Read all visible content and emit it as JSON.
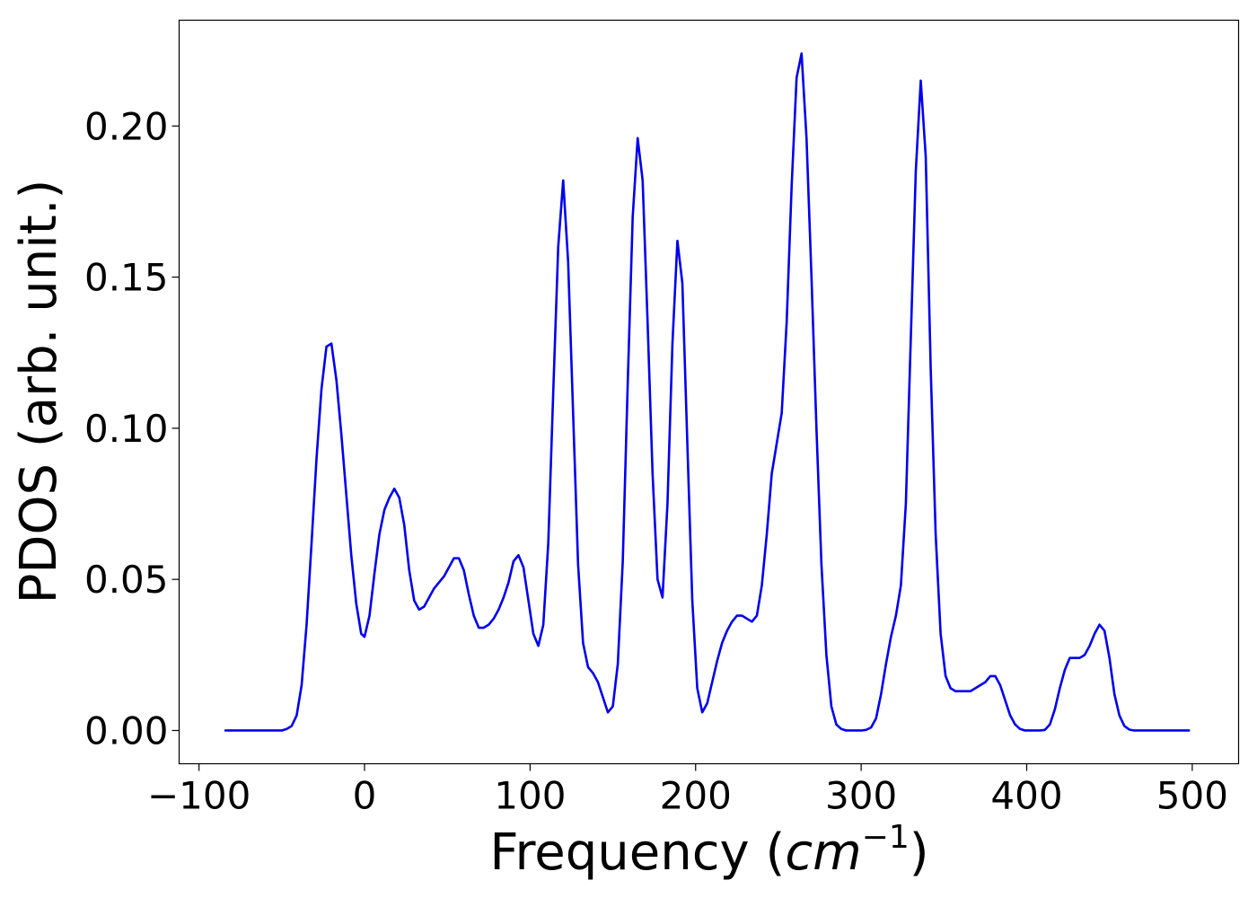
{
  "chart_data": {
    "type": "line",
    "title": "",
    "xlabel_text": "Frequency (",
    "xlabel_math": "cm",
    "xlabel_sup": "−1",
    "xlabel_close": ")",
    "ylabel": "PDOS (arb. unit.)",
    "xlim": [
      -112,
      528
    ],
    "ylim": [
      -0.011,
      0.235
    ],
    "xticks": [
      -100,
      0,
      100,
      200,
      300,
      400,
      500
    ],
    "xtick_labels": [
      "−100",
      "0",
      "100",
      "200",
      "300",
      "400",
      "500"
    ],
    "yticks": [
      0.0,
      0.05,
      0.1,
      0.15,
      0.2
    ],
    "ytick_labels": [
      "0.00",
      "0.05",
      "0.10",
      "0.15",
      "0.20"
    ],
    "grid": false,
    "legend": null,
    "line_color": "#0000ee",
    "series": [
      {
        "x": [
          -84,
          -50,
          -47,
          -44,
          -41,
          -38,
          -35,
          -32,
          -29,
          -26,
          -23,
          -20,
          -17,
          -14,
          -11,
          -8,
          -5,
          -2,
          0,
          3,
          6,
          9,
          12,
          15,
          18,
          21,
          24,
          27,
          30,
          33,
          36,
          39,
          42,
          45,
          48,
          51,
          54,
          57,
          60,
          63,
          66,
          69,
          72,
          75,
          78,
          81,
          84,
          87,
          90,
          93,
          96,
          99,
          102,
          105,
          108,
          111,
          114,
          117,
          120,
          123,
          126,
          129,
          132,
          135,
          138,
          141,
          144,
          147,
          150,
          153,
          156,
          159,
          162,
          165,
          168,
          171,
          174,
          177,
          180,
          183,
          186,
          189,
          192,
          195,
          198,
          201,
          204,
          207,
          210,
          213,
          216,
          219,
          222,
          225,
          228,
          231,
          234,
          237,
          240,
          243,
          246,
          249,
          252,
          255,
          258,
          261,
          264,
          267,
          270,
          273,
          276,
          279,
          282,
          285,
          288,
          291,
          294,
          297,
          300,
          303,
          306,
          309,
          312,
          315,
          318,
          321,
          324,
          327,
          330,
          333,
          336,
          339,
          342,
          345,
          348,
          351,
          354,
          357,
          360,
          363,
          366,
          369,
          372,
          375,
          378,
          381,
          384,
          387,
          390,
          393,
          396,
          399,
          402,
          405,
          408,
          411,
          414,
          417,
          420,
          423,
          426,
          429,
          432,
          435,
          438,
          441,
          444,
          447,
          450,
          453,
          456,
          459,
          462,
          465,
          468,
          471,
          474,
          477,
          480,
          483,
          486,
          489,
          492,
          495,
          498
        ],
        "values": [
          0.0,
          0.0,
          0.0005,
          0.0015,
          0.005,
          0.015,
          0.035,
          0.062,
          0.09,
          0.113,
          0.127,
          0.128,
          0.116,
          0.098,
          0.078,
          0.058,
          0.042,
          0.032,
          0.031,
          0.038,
          0.052,
          0.065,
          0.073,
          0.077,
          0.08,
          0.077,
          0.068,
          0.053,
          0.043,
          0.04,
          0.041,
          0.044,
          0.047,
          0.049,
          0.051,
          0.054,
          0.057,
          0.057,
          0.053,
          0.045,
          0.038,
          0.034,
          0.034,
          0.035,
          0.037,
          0.04,
          0.044,
          0.049,
          0.056,
          0.058,
          0.054,
          0.043,
          0.032,
          0.028,
          0.035,
          0.062,
          0.112,
          0.16,
          0.182,
          0.155,
          0.105,
          0.055,
          0.029,
          0.021,
          0.019,
          0.016,
          0.011,
          0.006,
          0.008,
          0.022,
          0.056,
          0.115,
          0.17,
          0.196,
          0.182,
          0.135,
          0.085,
          0.05,
          0.044,
          0.075,
          0.128,
          0.162,
          0.148,
          0.095,
          0.043,
          0.014,
          0.006,
          0.009,
          0.016,
          0.023,
          0.029,
          0.033,
          0.036,
          0.038,
          0.038,
          0.037,
          0.036,
          0.038,
          0.048,
          0.065,
          0.085,
          0.095,
          0.105,
          0.135,
          0.18,
          0.216,
          0.224,
          0.196,
          0.15,
          0.1,
          0.055,
          0.025,
          0.008,
          0.002,
          0.0005,
          0.0,
          0.0,
          0.0,
          0.0,
          0.0002,
          0.001,
          0.004,
          0.012,
          0.022,
          0.031,
          0.038,
          0.048,
          0.075,
          0.13,
          0.185,
          0.215,
          0.19,
          0.12,
          0.065,
          0.032,
          0.018,
          0.014,
          0.013,
          0.013,
          0.013,
          0.013,
          0.014,
          0.015,
          0.016,
          0.018,
          0.018,
          0.015,
          0.01,
          0.005,
          0.002,
          0.0005,
          0.0,
          0.0,
          0.0,
          0.0,
          0.0002,
          0.002,
          0.007,
          0.014,
          0.02,
          0.024,
          0.024,
          0.024,
          0.025,
          0.028,
          0.032,
          0.035,
          0.033,
          0.024,
          0.012,
          0.005,
          0.0015,
          0.0003,
          0.0,
          0.0,
          0.0,
          0.0,
          0.0,
          0.0,
          0.0,
          0.0,
          0.0,
          0.0,
          0.0,
          0.0
        ]
      }
    ]
  }
}
